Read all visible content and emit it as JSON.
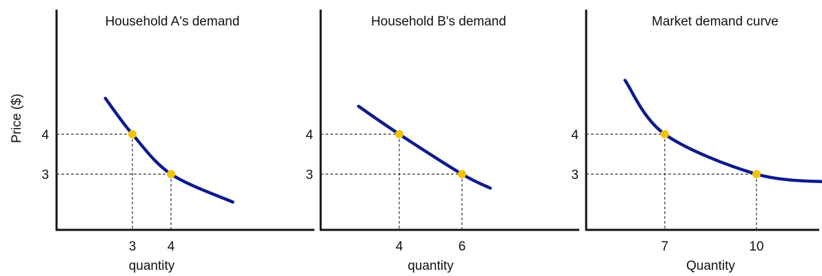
{
  "shared_ylabel": "Price ($)",
  "colors": {
    "curve": "#0d1a8f",
    "point": "#f5c400",
    "axis": "#111111",
    "guide": "#333333"
  },
  "chart_data": [
    {
      "type": "line",
      "title": "Household A's demand",
      "xlabel": "quantity",
      "ylabel": "Price ($)",
      "y_ticks": [
        4,
        3
      ],
      "x_ticks": [
        3,
        4
      ],
      "series": [
        {
          "x": [
            2.3,
            3,
            4,
            5.6
          ],
          "y": [
            4.9,
            4,
            3,
            2.3
          ]
        }
      ],
      "points": [
        {
          "x": 3,
          "y": 4
        },
        {
          "x": 4,
          "y": 3
        }
      ],
      "grid": false
    },
    {
      "type": "line",
      "title": "Household B's demand",
      "xlabel": "quantity",
      "ylabel": "",
      "y_ticks": [
        4,
        3
      ],
      "x_ticks": [
        4,
        6
      ],
      "series": [
        {
          "x": [
            2.7,
            4,
            6,
            6.9
          ],
          "y": [
            4.7,
            4,
            3,
            2.65
          ]
        }
      ],
      "points": [
        {
          "x": 4,
          "y": 4
        },
        {
          "x": 6,
          "y": 3
        }
      ],
      "grid": false
    },
    {
      "type": "line",
      "title": "Market demand curve",
      "xlabel": "Quantity",
      "ylabel": "",
      "y_ticks": [
        4,
        3
      ],
      "x_ticks": [
        7,
        10
      ],
      "series": [
        {
          "x": [
            5.7,
            7,
            10,
            12.4
          ],
          "y": [
            5.35,
            4,
            3,
            2.8
          ]
        }
      ],
      "points": [
        {
          "x": 7,
          "y": 4
        },
        {
          "x": 10,
          "y": 3
        }
      ],
      "grid": false
    }
  ]
}
